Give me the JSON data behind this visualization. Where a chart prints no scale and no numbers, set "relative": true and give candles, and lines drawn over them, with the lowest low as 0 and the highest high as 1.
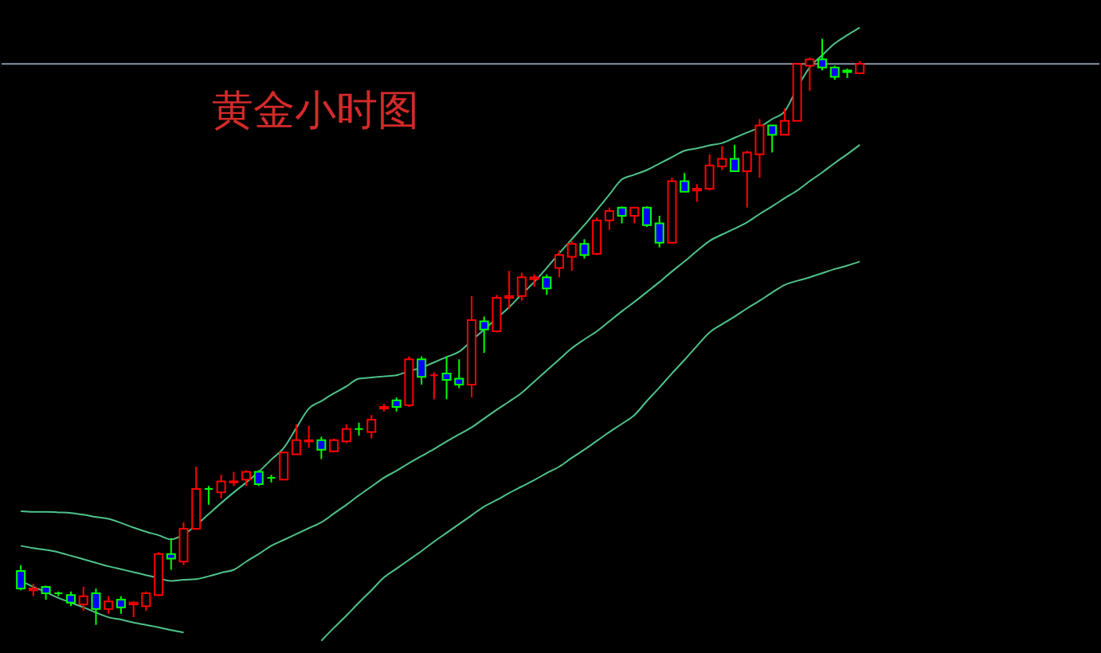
{
  "chart_data": {
    "type": "candlestick",
    "title": "黄金小时图",
    "relative": true,
    "tick_labels": false,
    "grid": false,
    "categories": [
      null,
      null,
      null,
      null,
      null,
      null,
      null,
      null,
      null,
      null,
      null,
      null,
      null,
      null,
      null,
      null,
      null,
      null,
      null,
      null,
      null,
      null,
      null,
      null,
      null,
      null,
      null,
      null,
      null,
      null,
      null,
      null,
      null,
      null,
      null,
      null,
      null,
      null,
      null,
      null,
      null,
      null,
      null,
      null,
      null,
      null,
      null,
      null,
      null,
      null,
      null,
      null,
      null,
      null,
      null,
      null,
      null,
      null,
      null,
      null,
      null,
      null,
      null,
      null,
      null,
      null,
      null,
      null
    ],
    "ohlc": [
      [
        0.092,
        0.102,
        0.059,
        0.062
      ],
      [
        0.059,
        0.07,
        0.049,
        0.062
      ],
      [
        0.065,
        0.067,
        0.043,
        0.054
      ],
      [
        0.054,
        0.057,
        0.049,
        0.054
      ],
      [
        0.051,
        0.057,
        0.032,
        0.038
      ],
      [
        0.035,
        0.065,
        0.024,
        0.049
      ],
      [
        0.054,
        0.062,
        0.0,
        0.027
      ],
      [
        0.027,
        0.049,
        0.019,
        0.04
      ],
      [
        0.043,
        0.049,
        0.019,
        0.03
      ],
      [
        0.035,
        0.04,
        0.013,
        0.038
      ],
      [
        0.032,
        0.057,
        0.024,
        0.054
      ],
      [
        0.051,
        0.124,
        0.049,
        0.121
      ],
      [
        0.121,
        0.148,
        0.094,
        0.113
      ],
      [
        0.108,
        0.175,
        0.102,
        0.164
      ],
      [
        0.164,
        0.27,
        0.162,
        0.232
      ],
      [
        0.232,
        0.237,
        0.205,
        0.232
      ],
      [
        0.226,
        0.256,
        0.216,
        0.245
      ],
      [
        0.243,
        0.261,
        0.237,
        0.245
      ],
      [
        0.248,
        0.264,
        0.237,
        0.261
      ],
      [
        0.261,
        0.264,
        0.237,
        0.24
      ],
      [
        0.251,
        0.256,
        0.243,
        0.251
      ],
      [
        0.248,
        0.296,
        0.248,
        0.294
      ],
      [
        0.291,
        0.342,
        0.291,
        0.315
      ],
      [
        0.313,
        0.34,
        0.302,
        0.315
      ],
      [
        0.315,
        0.321,
        0.283,
        0.299
      ],
      [
        0.296,
        0.318,
        0.294,
        0.315
      ],
      [
        0.313,
        0.342,
        0.31,
        0.334
      ],
      [
        0.334,
        0.345,
        0.323,
        0.334
      ],
      [
        0.329,
        0.358,
        0.318,
        0.35
      ],
      [
        0.369,
        0.377,
        0.364,
        0.372
      ],
      [
        0.383,
        0.388,
        0.364,
        0.372
      ],
      [
        0.375,
        0.458,
        0.372,
        0.453
      ],
      [
        0.453,
        0.458,
        0.41,
        0.423
      ],
      [
        0.426,
        0.431,
        0.385,
        0.426
      ],
      [
        0.429,
        0.458,
        0.385,
        0.418
      ],
      [
        0.42,
        0.453,
        0.404,
        0.41
      ],
      [
        0.41,
        0.561,
        0.388,
        0.52
      ],
      [
        0.518,
        0.526,
        0.464,
        0.504
      ],
      [
        0.501,
        0.563,
        0.499,
        0.558
      ],
      [
        0.558,
        0.604,
        0.539,
        0.561
      ],
      [
        0.561,
        0.601,
        0.553,
        0.593
      ],
      [
        0.59,
        0.598,
        0.577,
        0.593
      ],
      [
        0.593,
        0.598,
        0.563,
        0.574
      ],
      [
        0.609,
        0.639,
        0.593,
        0.631
      ],
      [
        0.628,
        0.655,
        0.604,
        0.65
      ],
      [
        0.65,
        0.658,
        0.625,
        0.631
      ],
      [
        0.633,
        0.695,
        0.631,
        0.69
      ],
      [
        0.69,
        0.712,
        0.674,
        0.706
      ],
      [
        0.712,
        0.714,
        0.685,
        0.698
      ],
      [
        0.698,
        0.712,
        0.685,
        0.712
      ],
      [
        0.712,
        0.714,
        0.679,
        0.682
      ],
      [
        0.685,
        0.698,
        0.644,
        0.652
      ],
      [
        0.652,
        0.763,
        0.65,
        0.757
      ],
      [
        0.757,
        0.771,
        0.739,
        0.739
      ],
      [
        0.741,
        0.752,
        0.722,
        0.744
      ],
      [
        0.744,
        0.803,
        0.741,
        0.784
      ],
      [
        0.782,
        0.817,
        0.776,
        0.795
      ],
      [
        0.795,
        0.819,
        0.774,
        0.774
      ],
      [
        0.774,
        0.809,
        0.712,
        0.806
      ],
      [
        0.803,
        0.863,
        0.763,
        0.852
      ],
      [
        0.852,
        0.852,
        0.806,
        0.836
      ],
      [
        0.836,
        0.881,
        0.836,
        0.86
      ],
      [
        0.86,
        0.957,
        0.86,
        0.957
      ],
      [
        0.954,
        0.968,
        0.911,
        0.965
      ],
      [
        0.965,
        1.0,
        0.946,
        0.951
      ],
      [
        0.951,
        0.954,
        0.93,
        0.935
      ],
      [
        0.946,
        0.949,
        0.933,
        0.943
      ],
      [
        0.941,
        0.962,
        0.941,
        0.957
      ]
    ],
    "colors": [
      "#00ff00",
      "#ff0000",
      "#00ff00",
      "#00ff00",
      "#00ff00",
      "#ff0000",
      "#00ff00",
      "#ff0000",
      "#00ff00",
      "#ff0000",
      "#ff0000",
      "#ff0000",
      "#00ff00",
      "#ff0000",
      "#ff0000",
      "#00ff00",
      "#ff0000",
      "#ff0000",
      "#ff0000",
      "#00ff00",
      "#00ff00",
      "#ff0000",
      "#ff0000",
      "#ff0000",
      "#00ff00",
      "#ff0000",
      "#ff0000",
      "#00ff00",
      "#ff0000",
      "#ff0000",
      "#00ff00",
      "#ff0000",
      "#00ff00",
      "#ff0000",
      "#00ff00",
      "#00ff00",
      "#ff0000",
      "#00ff00",
      "#ff0000",
      "#ff0000",
      "#ff0000",
      "#ff0000",
      "#00ff00",
      "#ff0000",
      "#ff0000",
      "#00ff00",
      "#ff0000",
      "#ff0000",
      "#00ff00",
      "#ff0000",
      "#00ff00",
      "#00ff00",
      "#ff0000",
      "#00ff00",
      "#ff0000",
      "#ff0000",
      "#ff0000",
      "#00ff00",
      "#ff0000",
      "#ff0000",
      "#00ff00",
      "#ff0000",
      "#ff0000",
      "#ff0000",
      "#00ff00",
      "#00ff00",
      "#00ff00",
      "#ff0000"
    ],
    "series": [
      {
        "type": "line",
        "color": "#4fc28a",
        "values": [
          0.194,
          0.193,
          0.193,
          0.192,
          0.191,
          0.188,
          0.184,
          0.181,
          0.174,
          0.166,
          0.159,
          0.153,
          0.146,
          0.154,
          0.17,
          0.189,
          0.208,
          0.226,
          0.243,
          0.261,
          0.282,
          0.302,
          0.336,
          0.369,
          0.382,
          0.395,
          0.407,
          0.42,
          0.422,
          0.424,
          0.426,
          0.433,
          0.439,
          0.448,
          0.457,
          0.466,
          0.485,
          0.504,
          0.523,
          0.542,
          0.564,
          0.585,
          0.609,
          0.634,
          0.658,
          0.682,
          0.708,
          0.734,
          0.76,
          0.768,
          0.776,
          0.787,
          0.798,
          0.809,
          0.813,
          0.818,
          0.822,
          0.831,
          0.84,
          0.849,
          0.863,
          0.876,
          0.916,
          0.951,
          0.972,
          0.992,
          1.006,
          1.019
        ]
      },
      {
        "type": "line",
        "color": "#4fc28a",
        "values": [
          0.135,
          0.131,
          0.128,
          0.124,
          0.118,
          0.112,
          0.106,
          0.1,
          0.095,
          0.09,
          0.085,
          0.08,
          0.075,
          0.077,
          0.078,
          0.083,
          0.089,
          0.094,
          0.108,
          0.121,
          0.135,
          0.145,
          0.155,
          0.165,
          0.175,
          0.19,
          0.205,
          0.221,
          0.236,
          0.251,
          0.263,
          0.276,
          0.288,
          0.3,
          0.313,
          0.325,
          0.337,
          0.352,
          0.367,
          0.381,
          0.396,
          0.415,
          0.434,
          0.453,
          0.472,
          0.487,
          0.501,
          0.518,
          0.535,
          0.551,
          0.568,
          0.585,
          0.603,
          0.62,
          0.638,
          0.655,
          0.666,
          0.676,
          0.687,
          0.701,
          0.714,
          0.728,
          0.741,
          0.757,
          0.772,
          0.788,
          0.803,
          0.819
        ]
      },
      {
        "type": "line",
        "color": "#4fc28a",
        "values": [
          0.075,
          0.065,
          0.056,
          0.046,
          0.038,
          0.03,
          0.021,
          0.013,
          0.009,
          0.004,
          0.0,
          -0.004,
          -0.009,
          -0.013,
          null,
          null,
          null,
          null,
          null,
          null,
          null,
          null,
          null,
          null,
          -0.027,
          -0.005,
          0.016,
          0.038,
          0.059,
          0.081,
          0.096,
          0.111,
          0.126,
          0.142,
          0.157,
          0.172,
          0.187,
          0.202,
          0.213,
          0.225,
          0.236,
          0.247,
          0.259,
          0.27,
          0.285,
          0.299,
          0.314,
          0.329,
          0.343,
          0.358,
          0.382,
          0.405,
          0.429,
          0.452,
          0.476,
          0.499,
          0.513,
          0.526,
          0.54,
          0.553,
          0.567,
          0.58,
          0.587,
          0.593,
          0.6,
          0.607,
          0.613,
          0.62
        ]
      }
    ],
    "ref_lines": [
      {
        "axis": "y",
        "value": 0.957,
        "color": "#8796a8"
      }
    ]
  }
}
